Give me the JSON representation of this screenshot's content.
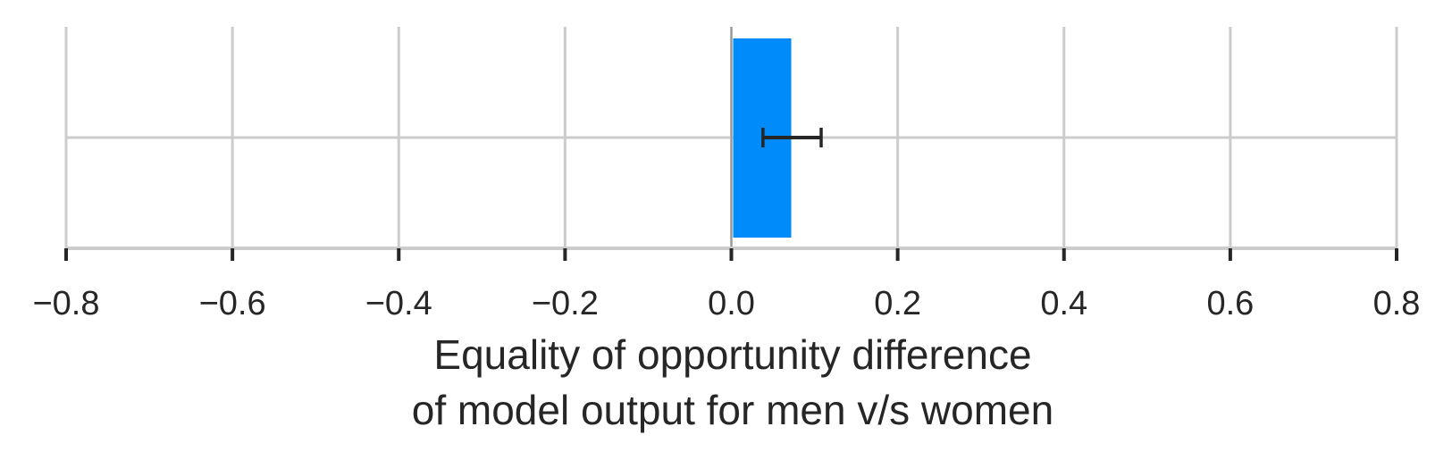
{
  "chart_data": {
    "type": "bar",
    "orientation": "horizontal",
    "xlabel": [
      "Equality of opportunity difference",
      "of model output for men v/s women"
    ],
    "ylabel": "",
    "xlim": [
      -0.8,
      0.8
    ],
    "xticks": [
      -0.8,
      -0.6,
      -0.4,
      -0.2,
      0.0,
      0.2,
      0.4,
      0.6,
      0.8
    ],
    "xtick_labels": [
      "−0.8",
      "−0.6",
      "−0.4",
      "−0.2",
      "0.0",
      "0.2",
      "0.4",
      "0.6",
      "0.8"
    ],
    "grid": true,
    "bars": [
      {
        "value": 0.072,
        "error_low": 0.038,
        "error_high": 0.108,
        "color": "#008bfb"
      }
    ],
    "zero_line_color": "#999999",
    "error_bar_color": "#262626",
    "grid_color": "#cccccc"
  }
}
